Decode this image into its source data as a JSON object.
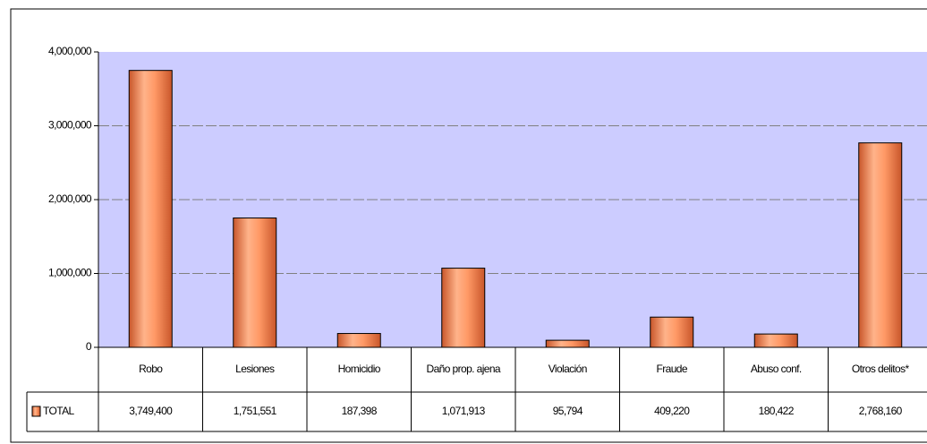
{
  "chart_data": {
    "type": "bar",
    "categories": [
      "Robo",
      "Lesiones",
      "Homicidio",
      "Daño prop. ajena",
      "Violación",
      "Fraude",
      "Abuso conf.",
      "Otros delitos*"
    ],
    "series": [
      {
        "name": "TOTAL",
        "color": "#ff9966",
        "values": [
          3749400,
          1751551,
          187398,
          1071913,
          95794,
          409220,
          180422,
          2768160
        ],
        "value_labels": [
          "3,749,400",
          "1,751,551",
          "187,398",
          "1,071,913",
          "95,794",
          "409,220",
          "180,422",
          "2,768,160"
        ]
      }
    ],
    "ylim": [
      0,
      4000000
    ],
    "yticks": [
      0,
      {
        "value": 1000000,
        "label": "1,000,000"
      },
      {
        "value": 2000000,
        "label": "2,000,000"
      },
      {
        "value": 3000000,
        "label": "3,000,000"
      },
      {
        "value": 4000000,
        "label": "4,000,000"
      }
    ],
    "grid": true,
    "legend": "table"
  }
}
